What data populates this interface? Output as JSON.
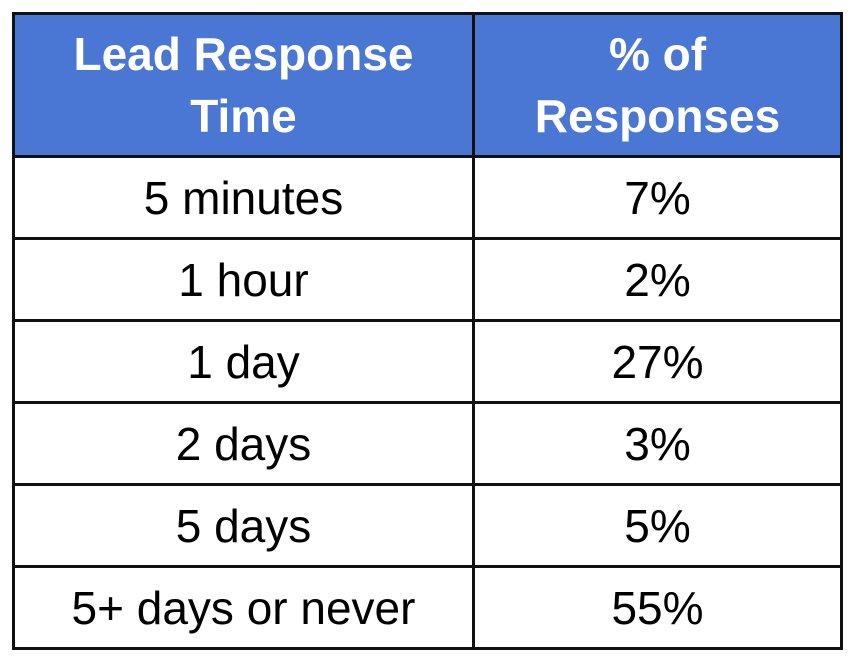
{
  "chart_data": {
    "type": "table",
    "columns": [
      [
        "Lead Response",
        "Time"
      ],
      [
        "% of",
        "Responses"
      ]
    ],
    "rows": [
      {
        "time": "5 minutes",
        "percent": "7%"
      },
      {
        "time": "1 hour",
        "percent": "2%"
      },
      {
        "time": "1 day",
        "percent": "27%"
      },
      {
        "time": "2 days",
        "percent": "3%"
      },
      {
        "time": "5 days",
        "percent": "5%"
      },
      {
        "time": "5+ days or never",
        "percent": "55%"
      }
    ]
  },
  "colors": {
    "header_background": "#4a77d4",
    "header_text": "#ffffff",
    "border": "#111111"
  }
}
